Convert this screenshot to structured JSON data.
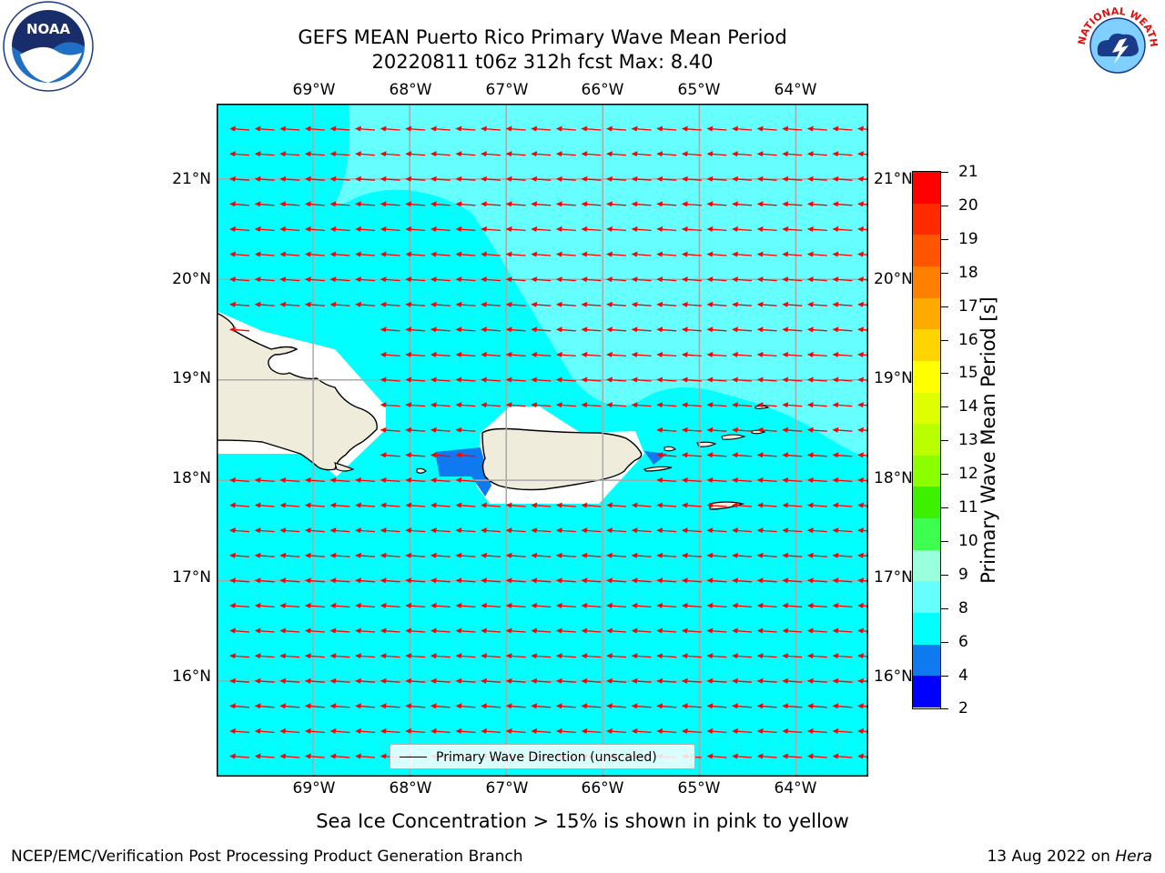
{
  "title": {
    "line1": "GEFS MEAN Puerto Rico Primary Wave Mean Period",
    "line2": "20220811 t06z 312h fcst   Max: 8.40"
  },
  "map": {
    "lon_ticks": [
      "69°W",
      "68°W",
      "67°W",
      "66°W",
      "65°W",
      "64°W"
    ],
    "lat_ticks": [
      "21°N",
      "20°N",
      "19°N",
      "18°N",
      "17°N",
      "16°N"
    ],
    "lat_ticks_right": [
      "21°N",
      "20°N",
      "19°N",
      "18°N",
      "17°N",
      "16°N"
    ],
    "lon_range": [
      -70,
      -63.25
    ],
    "lat_range": [
      15.05,
      21.75
    ],
    "wave_direction": "from east (arrows pointing west)",
    "colors": {
      "ocean": "#00ffff",
      "ocean_high": "#66ffff",
      "land": "#f0ecdc",
      "arrow": "#ff0000",
      "low_period": "#0f7af0"
    }
  },
  "legend": {
    "label": "Primary Wave Direction (unscaled)"
  },
  "colorbar": {
    "label": "Primary Wave Mean Period [s]",
    "ticks": [
      "21",
      "20",
      "19",
      "18",
      "17",
      "16",
      "15",
      "14",
      "13",
      "12",
      "11",
      "10",
      "9",
      "8",
      "6",
      "4",
      "2"
    ],
    "colors": [
      "#ff0000",
      "#ff2a00",
      "#ff5500",
      "#ff8000",
      "#ffaa00",
      "#ffd400",
      "#ffff00",
      "#ddff00",
      "#b9ff00",
      "#8bff00",
      "#3cf000",
      "#3cff50",
      "#99ffdd",
      "#66ffff",
      "#00ffff",
      "#0f7af0",
      "#0000ff"
    ]
  },
  "footer": {
    "note": "Sea Ice Concentration > 15% is shown in pink to yellow",
    "left": "NCEP/EMC/Verification Post Processing Product Generation Branch",
    "right_date": "13 Aug 2022 on ",
    "right_host": "Hera"
  },
  "logos": {
    "left": "noaa-logo",
    "right": "national-weather-service-logo",
    "left_text": "NOAA",
    "right_text": "NATIONAL WEATHER SERVICE"
  }
}
